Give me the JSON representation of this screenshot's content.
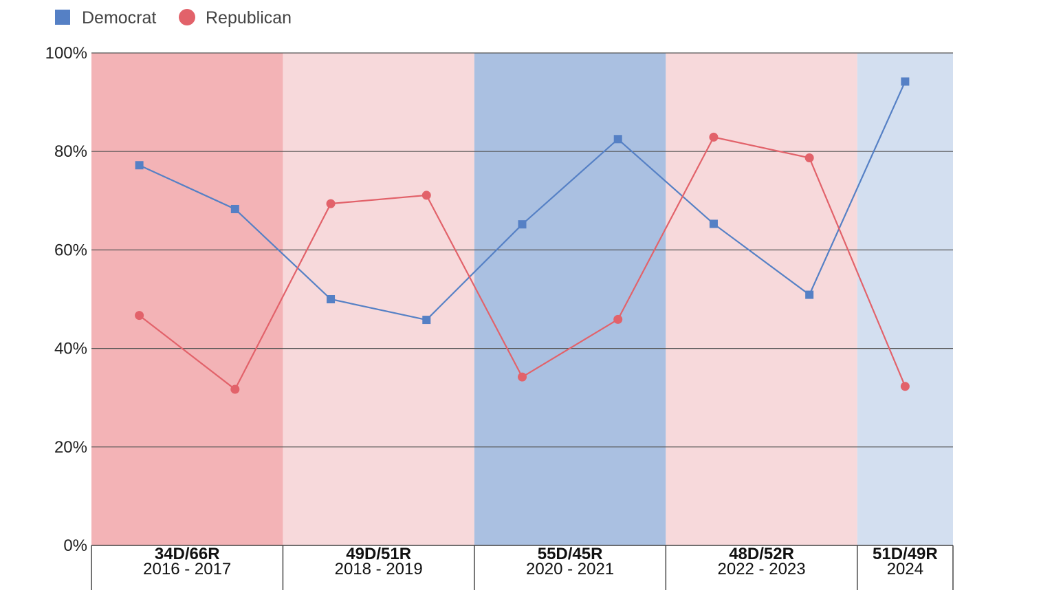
{
  "chart_data": {
    "type": "line",
    "legend": {
      "placement": "top-left",
      "items": [
        {
          "name": "Democrat",
          "color": "#5580c5",
          "marker": "square"
        },
        {
          "name": "Republican",
          "color": "#e2626a",
          "marker": "circle"
        }
      ]
    },
    "x": [
      1,
      2,
      3,
      4,
      5,
      6,
      7,
      8,
      9
    ],
    "series": [
      {
        "name": "Democrat",
        "color": "#5580c5",
        "marker": "square",
        "values": [
          77.2,
          68.3,
          50.0,
          45.8,
          65.2,
          82.5,
          65.3,
          50.9,
          94.2
        ]
      },
      {
        "name": "Republican",
        "color": "#e2626a",
        "marker": "circle",
        "values": [
          46.7,
          31.7,
          69.4,
          71.1,
          34.2,
          45.9,
          82.9,
          78.7,
          32.3
        ]
      }
    ],
    "bands": [
      {
        "top": "34D/66R",
        "bottom": "2016 - 2017",
        "from": 0.5,
        "to": 2.5,
        "color": "#f3b3b6"
      },
      {
        "top": "49D/51R",
        "bottom": "2018 - 2019",
        "from": 2.5,
        "to": 4.5,
        "color": "#f7d9db"
      },
      {
        "top": "55D/45R",
        "bottom": "2020 - 2021",
        "from": 4.5,
        "to": 6.5,
        "color": "#aac0e1"
      },
      {
        "top": "48D/52R",
        "bottom": "2022 - 2023",
        "from": 6.5,
        "to": 8.5,
        "color": "#f7d9db"
      },
      {
        "top": "51D/49R",
        "bottom": "2024",
        "from": 8.5,
        "to": 9.5,
        "color": "#d3dff0"
      }
    ],
    "ylim": [
      0,
      100
    ],
    "yticks": [
      "0%",
      "20%",
      "40%",
      "60%",
      "80%",
      "100%"
    ],
    "ytick_values": [
      0,
      20,
      40,
      60,
      80,
      100
    ],
    "grid": true,
    "xlim": [
      0.5,
      9.5
    ]
  }
}
